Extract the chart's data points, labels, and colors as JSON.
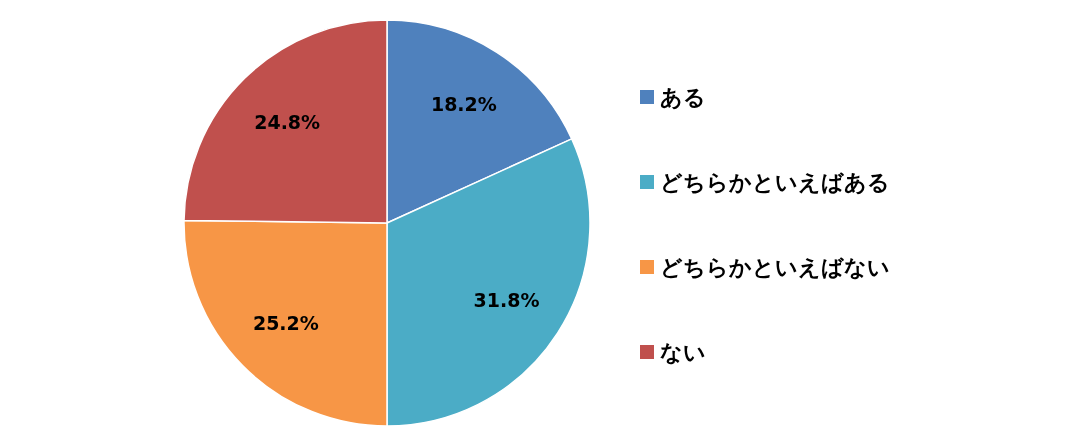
{
  "chart_data": {
    "type": "pie",
    "categories": [
      "ある",
      "どちらかといえばある",
      "どちらかといえばない",
      "ない"
    ],
    "values": [
      18.2,
      31.8,
      25.2,
      24.8
    ],
    "colors": [
      "#4f81bd",
      "#4bacc6",
      "#f79646",
      "#c0504d"
    ],
    "value_labels": [
      "18.2%",
      "31.8%",
      "25.2%",
      "24.8%"
    ],
    "legend": "right"
  }
}
